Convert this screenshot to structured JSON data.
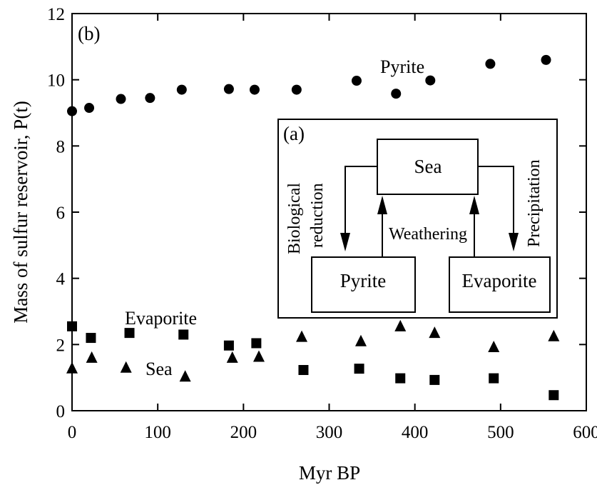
{
  "chart_data": {
    "type": "scatter",
    "panel_label": "(b)",
    "xlabel": "Myr BP",
    "ylabel": "Mass of sulfur reservoir, P(t)",
    "xlim": [
      0,
      600
    ],
    "ylim": [
      0,
      12
    ],
    "xticks": [
      0,
      100,
      200,
      300,
      400,
      500,
      600
    ],
    "yticks": [
      0,
      2,
      4,
      6,
      8,
      10,
      12
    ],
    "grid": false,
    "series": [
      {
        "name": "Pyrite",
        "marker": "circle",
        "x": [
          0,
          20,
          57,
          91,
          128,
          183,
          213,
          262,
          332,
          378,
          418,
          488,
          553
        ],
        "y": [
          9.05,
          9.15,
          9.42,
          9.45,
          9.7,
          9.72,
          9.7,
          9.7,
          9.97,
          9.58,
          9.98,
          10.48,
          10.6
        ]
      },
      {
        "name": "Evaporite",
        "marker": "square",
        "x": [
          0,
          22,
          67,
          130,
          183,
          215,
          270,
          335,
          383,
          423,
          492,
          562
        ],
        "y": [
          2.55,
          2.2,
          2.35,
          2.3,
          1.97,
          2.04,
          1.23,
          1.27,
          0.98,
          0.93,
          0.98,
          0.47
        ]
      },
      {
        "name": "Sea",
        "marker": "triangle",
        "x": [
          0,
          23,
          63,
          132,
          187,
          218,
          268,
          337,
          383,
          423,
          492,
          562
        ],
        "y": [
          1.28,
          1.6,
          1.3,
          1.03,
          1.6,
          1.63,
          2.23,
          2.1,
          2.55,
          2.35,
          1.92,
          2.25
        ]
      }
    ],
    "annotations": {
      "pyrite_label": "Pyrite",
      "evaporite_label": "Evaporite",
      "sea_label": "Sea"
    }
  },
  "inset": {
    "panel_label": "(a)",
    "sea": "Sea",
    "pyrite": "Pyrite",
    "evaporite": "Evaporite",
    "biological_line1": "Biological",
    "biological_line2": "reduction",
    "weathering": "Weathering",
    "precipitation": "Precipitation"
  }
}
